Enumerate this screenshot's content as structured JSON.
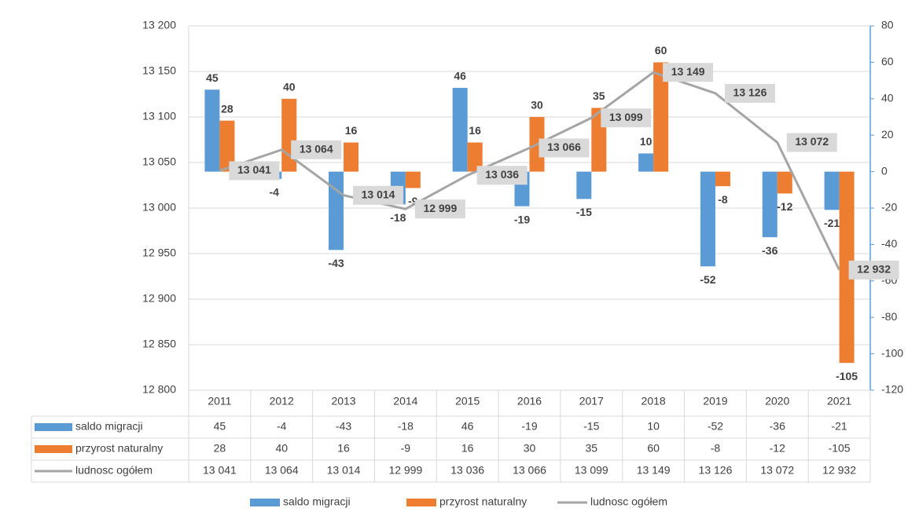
{
  "chart_data": {
    "type": "combo",
    "categories": [
      "2011",
      "2012",
      "2013",
      "2014",
      "2015",
      "2016",
      "2017",
      "2018",
      "2019",
      "2020",
      "2021"
    ],
    "series": [
      {
        "name": "saldo migracji",
        "type": "bar",
        "axis": "y2",
        "color": "#5b9bd5",
        "label_color": "#2f5597",
        "values": [
          45,
          -4,
          -43,
          -18,
          46,
          -19,
          -15,
          10,
          -52,
          -36,
          -21
        ]
      },
      {
        "name": "przyrost naturalny",
        "type": "bar",
        "axis": "y2",
        "color": "#ed7d31",
        "label_color": "#c55a11",
        "values": [
          28,
          40,
          16,
          -9,
          16,
          30,
          35,
          60,
          -8,
          -12,
          -105
        ]
      },
      {
        "name": "ludnosc ogółem",
        "type": "line",
        "axis": "y",
        "color": "#a5a5a5",
        "label_color": "#404040",
        "values": [
          13041,
          13064,
          13014,
          12999,
          13036,
          13066,
          13099,
          13149,
          13126,
          13072,
          12932
        ],
        "value_labels": [
          "13 041",
          "13 064",
          "13 014",
          "12 999",
          "13 036",
          "13 066",
          "13 099",
          "13 149",
          "13 126",
          "13 072",
          "12 932"
        ]
      }
    ],
    "ylim": [
      12800,
      13200
    ],
    "yticks": [
      {
        "value": 12800,
        "label": "12 800"
      },
      {
        "value": 12850,
        "label": "12 850"
      },
      {
        "value": 12900,
        "label": "12 900"
      },
      {
        "value": 12950,
        "label": "12 950"
      },
      {
        "value": 13000,
        "label": "13 000"
      },
      {
        "value": 13050,
        "label": "13 050"
      },
      {
        "value": 13100,
        "label": "13 100"
      },
      {
        "value": 13150,
        "label": "13 150"
      },
      {
        "value": 13200,
        "label": "13 200"
      }
    ],
    "y2lim": [
      -120,
      80
    ],
    "y2ticks": [
      -120,
      -100,
      -80,
      -60,
      -40,
      -20,
      0,
      20,
      40,
      60,
      80
    ],
    "grid": true,
    "data_table": true,
    "legend": "bottom"
  }
}
